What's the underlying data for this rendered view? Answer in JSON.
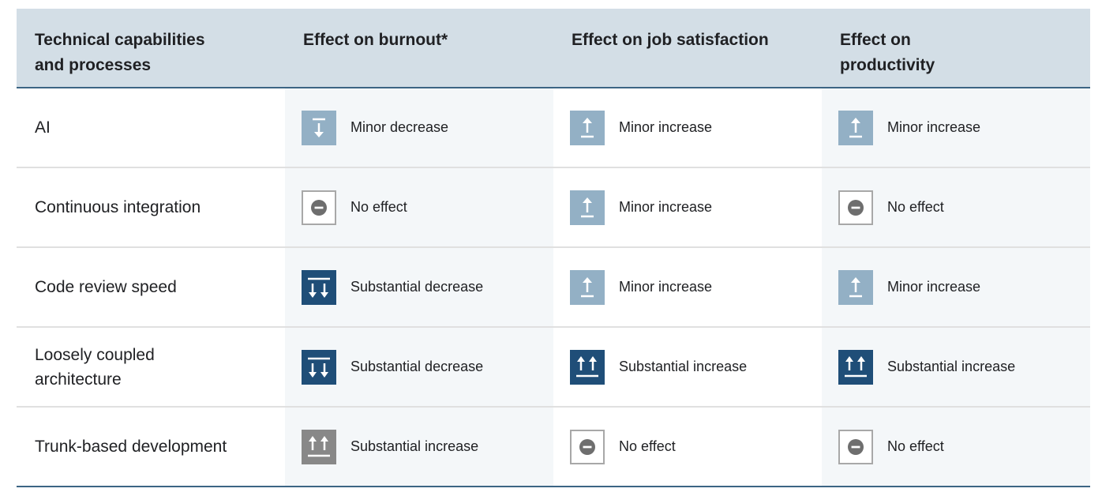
{
  "header": {
    "col0": "Technical capabilities and processes",
    "col1": "Effect on burnout*",
    "col2": "Effect on job satisfaction",
    "col3": "Effect on productivity"
  },
  "rows": [
    {
      "label": "AI",
      "effects": [
        {
          "text": "Minor decrease",
          "kind": "minor-decrease",
          "color": "#93b0c5"
        },
        {
          "text": "Minor increase",
          "kind": "minor-increase",
          "color": "#93b0c5"
        },
        {
          "text": "Minor increase",
          "kind": "minor-increase",
          "color": "#93b0c5"
        }
      ]
    },
    {
      "label": "Continuous integration",
      "effects": [
        {
          "text": "No effect",
          "kind": "no-effect",
          "color": "#6e6e6e"
        },
        {
          "text": "Minor increase",
          "kind": "minor-increase",
          "color": "#93b0c5"
        },
        {
          "text": "No effect",
          "kind": "no-effect",
          "color": "#6e6e6e"
        }
      ]
    },
    {
      "label": "Code review speed",
      "effects": [
        {
          "text": "Substantial decrease",
          "kind": "substantial-decrease",
          "color": "#1f4e78"
        },
        {
          "text": "Minor increase",
          "kind": "minor-increase",
          "color": "#93b0c5"
        },
        {
          "text": "Minor increase",
          "kind": "minor-increase",
          "color": "#93b0c5"
        }
      ]
    },
    {
      "label": "Loosely coupled architecture",
      "effects": [
        {
          "text": "Substantial decrease",
          "kind": "substantial-decrease",
          "color": "#1f4e78"
        },
        {
          "text": "Substantial increase",
          "kind": "substantial-increase",
          "color": "#1f4e78"
        },
        {
          "text": "Substantial increase",
          "kind": "substantial-increase",
          "color": "#1f4e78"
        }
      ]
    },
    {
      "label": "Trunk-based development",
      "effects": [
        {
          "text": "Substantial increase",
          "kind": "substantial-increase",
          "color": "#888888"
        },
        {
          "text": "No effect",
          "kind": "no-effect",
          "color": "#6e6e6e"
        },
        {
          "text": "No effect",
          "kind": "no-effect",
          "color": "#6e6e6e"
        }
      ]
    }
  ]
}
